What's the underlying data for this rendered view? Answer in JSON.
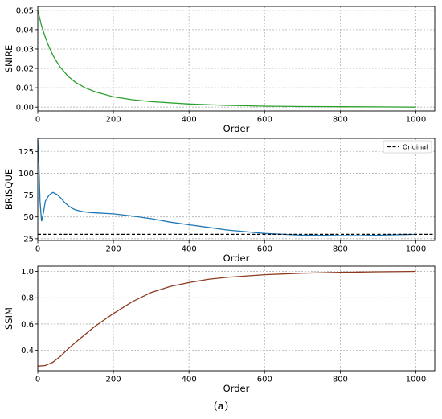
{
  "caption": {
    "open": "(",
    "letter": "a",
    "close": ")"
  },
  "chart_data": [
    {
      "type": "line",
      "xlabel": "Order",
      "ylabel": "SNIRE",
      "xlim": [
        0,
        1050
      ],
      "ylim": [
        -0.002,
        0.052
      ],
      "xticks": [
        0,
        200,
        400,
        600,
        800,
        1000
      ],
      "yticks": [
        0.0,
        0.01,
        0.02,
        0.03,
        0.04,
        0.05
      ],
      "ytick_labels": [
        "0.00",
        "0.01",
        "0.02",
        "0.03",
        "0.04",
        "0.05"
      ],
      "grid": true,
      "series": [
        {
          "color": "#2ca02c",
          "x": [
            0,
            10,
            20,
            30,
            40,
            50,
            60,
            80,
            100,
            125,
            150,
            200,
            250,
            300,
            400,
            500,
            600,
            700,
            800,
            900,
            1000
          ],
          "y": [
            0.05,
            0.042,
            0.036,
            0.031,
            0.0268,
            0.0235,
            0.0205,
            0.016,
            0.0128,
            0.01,
            0.008,
            0.0053,
            0.0038,
            0.0028,
            0.0016,
            0.0009,
            0.0005,
            0.0003,
            0.0002,
            0.0001,
            0.0
          ]
        }
      ]
    },
    {
      "type": "line",
      "xlabel": "Order",
      "ylabel": "BRISQUE",
      "xlim": [
        0,
        1050
      ],
      "ylim": [
        23,
        140
      ],
      "xticks": [
        0,
        200,
        400,
        600,
        800,
        1000
      ],
      "yticks": [
        25,
        50,
        75,
        100,
        125
      ],
      "ytick_labels": [
        "25",
        "50",
        "75",
        "100",
        "125"
      ],
      "grid": true,
      "legend": {
        "placement": "top-right",
        "entries": [
          "Original"
        ]
      },
      "series": [
        {
          "color": "#1f77b4",
          "x": [
            0,
            3,
            6,
            10,
            15,
            20,
            30,
            40,
            50,
            60,
            70,
            80,
            90,
            100,
            120,
            140,
            160,
            180,
            200,
            250,
            300,
            350,
            400,
            450,
            500,
            550,
            600,
            650,
            700,
            750,
            800,
            850,
            900,
            950,
            1000
          ],
          "y": [
            138,
            110,
            68,
            45,
            55,
            68,
            75,
            78,
            76,
            72,
            67,
            63,
            60,
            58,
            56,
            55,
            54.5,
            54,
            53.5,
            51,
            48,
            44,
            41,
            38,
            35,
            33,
            31,
            30,
            29,
            29,
            28.5,
            28.5,
            29,
            29.5,
            30
          ]
        },
        {
          "name": "Original",
          "color": "#000000",
          "dashed": true,
          "x": [
            0,
            1050
          ],
          "y": [
            30,
            30
          ]
        }
      ]
    },
    {
      "type": "line",
      "xlabel": "Order",
      "ylabel": "SSIM",
      "xlim": [
        0,
        1050
      ],
      "ylim": [
        0.245,
        1.04
      ],
      "xticks": [
        0,
        200,
        400,
        600,
        800,
        1000
      ],
      "yticks": [
        0.4,
        0.6,
        0.8,
        1.0
      ],
      "ytick_labels": [
        "0.4",
        "0.6",
        "0.8",
        "1.0"
      ],
      "grid": true,
      "series": [
        {
          "color": "#8c3b1f",
          "x": [
            0,
            20,
            40,
            60,
            80,
            100,
            150,
            200,
            250,
            300,
            350,
            400,
            450,
            500,
            600,
            700,
            800,
            900,
            1000
          ],
          "y": [
            0.28,
            0.285,
            0.31,
            0.355,
            0.41,
            0.46,
            0.58,
            0.68,
            0.77,
            0.84,
            0.885,
            0.915,
            0.94,
            0.955,
            0.975,
            0.987,
            0.993,
            0.997,
            1.0
          ]
        }
      ]
    }
  ]
}
